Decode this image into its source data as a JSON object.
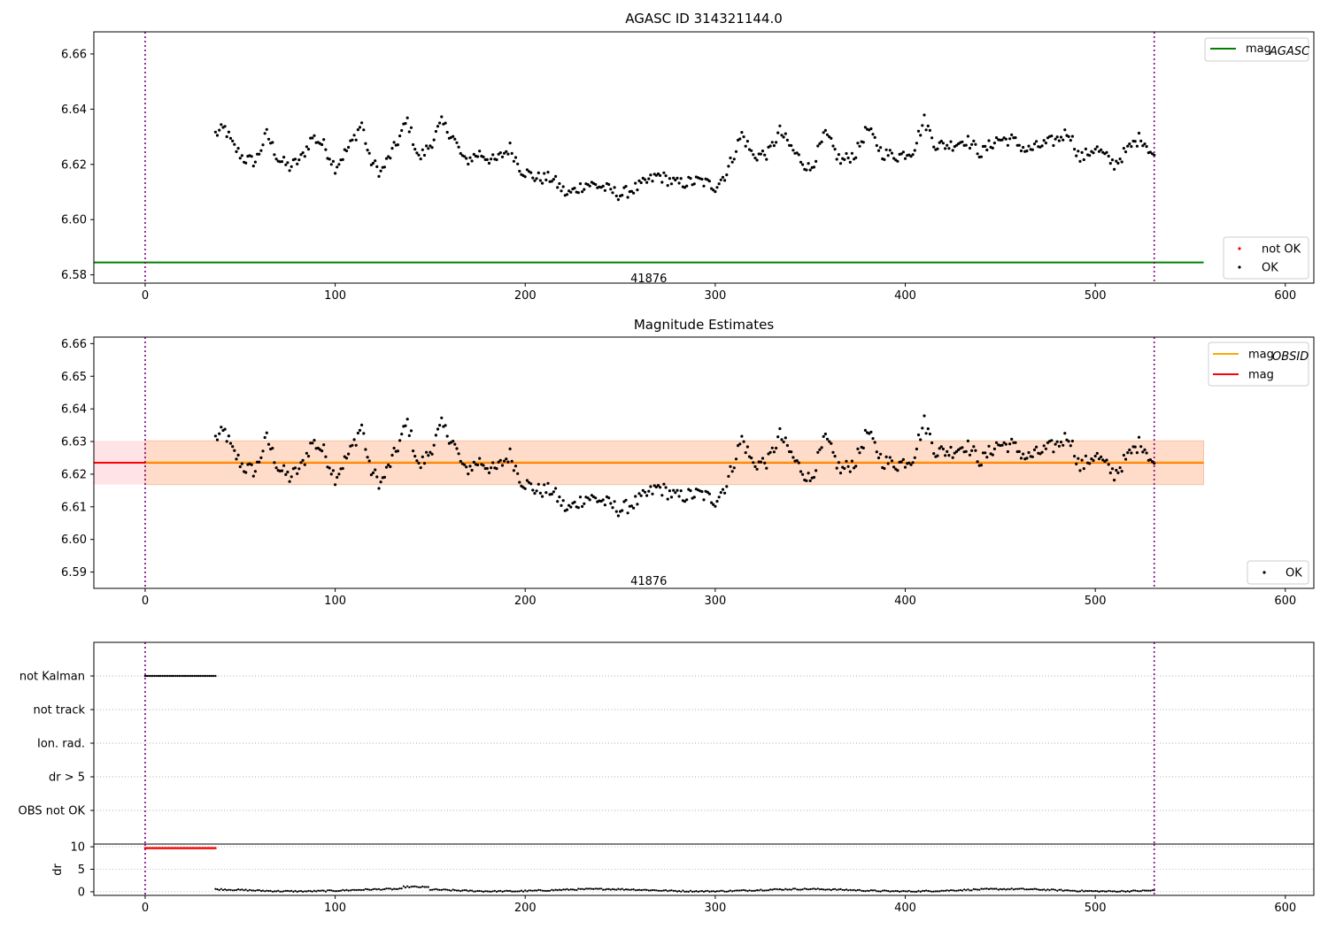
{
  "chart_data": [
    {
      "type": "scatter",
      "title": "AGASC ID 314321144.0",
      "xlim": [
        -27,
        615
      ],
      "ylim": [
        6.577,
        6.668
      ],
      "xticks": [
        0,
        100,
        200,
        300,
        400,
        500,
        600
      ],
      "yticks": [
        6.58,
        6.6,
        6.62,
        6.64,
        6.66
      ],
      "vlines": [
        0,
        531
      ],
      "hlines": [
        {
          "name": "mag_AGASC",
          "y": 6.5845,
          "x": [
            -27,
            557
          ],
          "color": "#008000"
        }
      ],
      "annotation": {
        "text": "41876",
        "x": 265,
        "y": 6.579
      },
      "legend_upper": {
        "position": "upper right",
        "entries": [
          {
            "label": "mag",
            "subscript": "AGASC",
            "color": "#008000"
          }
        ]
      },
      "legend_lower": {
        "position": "lower right",
        "entries": [
          {
            "label": "not OK",
            "color": "#ff0000"
          },
          {
            "label": "OK",
            "color": "#000000"
          }
        ]
      },
      "series": [
        {
          "name": "OK",
          "color": "#000000",
          "source": "mag_series"
        }
      ]
    },
    {
      "type": "scatter",
      "title": "Magnitude Estimates",
      "xlim": [
        -27,
        615
      ],
      "ylim": [
        6.585,
        6.662
      ],
      "xticks": [
        0,
        100,
        200,
        300,
        400,
        500,
        600
      ],
      "yticks": [
        6.59,
        6.6,
        6.61,
        6.62,
        6.63,
        6.64,
        6.65,
        6.66
      ],
      "vlines": [
        0,
        531
      ],
      "bands": [
        {
          "x": [
            -27,
            557
          ],
          "y": [
            6.6168,
            6.6302
          ],
          "color": "#ffe3e6"
        },
        {
          "x": [
            0,
            557
          ],
          "y": [
            6.6168,
            6.6302
          ],
          "color": "#ffdcca"
        }
      ],
      "hlines": [
        {
          "name": "mag",
          "y": 6.6235,
          "x": [
            -27,
            557
          ],
          "color": "#ff0000"
        },
        {
          "name": "mag_OBSID",
          "y": 6.6236,
          "x": [
            0,
            557
          ],
          "color": "#ffa500"
        }
      ],
      "annotation": {
        "text": "41876",
        "x": 265,
        "y": 6.5875
      },
      "legend_upper": {
        "position": "upper right",
        "entries": [
          {
            "label": "mag",
            "subscript": "OBSID",
            "color": "#ffa500"
          },
          {
            "label": "mag",
            "color": "#ff0000"
          }
        ]
      },
      "legend_lower": {
        "position": "lower right",
        "entries": [
          {
            "label": "OK",
            "color": "#000000"
          }
        ]
      },
      "series": [
        {
          "name": "OK",
          "color": "#000000",
          "source": "mag_series"
        }
      ]
    },
    {
      "type": "scatter",
      "xlim": [
        -27,
        615
      ],
      "categories": [
        "not Kalman",
        "not track",
        "Ion. rad.",
        "dr > 5",
        "OBS not OK"
      ],
      "flag_segments": [
        {
          "category": "not Kalman",
          "x": [
            0,
            37
          ],
          "color": "#000000"
        }
      ],
      "vlines": [
        0,
        531
      ],
      "series": []
    },
    {
      "type": "scatter",
      "ylabel": "dr",
      "xlim": [
        -27,
        615
      ],
      "ylim": [
        -0.8,
        10.6
      ],
      "xticks": [
        0,
        100,
        200,
        300,
        400,
        500,
        600
      ],
      "yticks": [
        0,
        5,
        10
      ],
      "vlines": [
        0,
        531
      ],
      "series": [
        {
          "name": "dr > 5",
          "color": "#ff0000",
          "x_range": [
            0,
            37
          ],
          "y": 9.7
        },
        {
          "name": "dr",
          "color": "#000000",
          "x_range": [
            37,
            531
          ],
          "y_range": [
            0,
            1.2
          ]
        }
      ]
    }
  ],
  "mag_series": {
    "x_range": [
      37,
      531
    ],
    "knots": [
      [
        37,
        6.631
      ],
      [
        42,
        6.633
      ],
      [
        46,
        6.627
      ],
      [
        52,
        6.622
      ],
      [
        58,
        6.621
      ],
      [
        64,
        6.631
      ],
      [
        70,
        6.622
      ],
      [
        76,
        6.619
      ],
      [
        82,
        6.622
      ],
      [
        88,
        6.63
      ],
      [
        94,
        6.627
      ],
      [
        100,
        6.619
      ],
      [
        108,
        6.627
      ],
      [
        114,
        6.635
      ],
      [
        118,
        6.622
      ],
      [
        124,
        6.617
      ],
      [
        132,
        6.627
      ],
      [
        138,
        6.636
      ],
      [
        144,
        6.622
      ],
      [
        150,
        6.627
      ],
      [
        156,
        6.635
      ],
      [
        162,
        6.63
      ],
      [
        168,
        6.621
      ],
      [
        176,
        6.624
      ],
      [
        184,
        6.621
      ],
      [
        192,
        6.626
      ],
      [
        198,
        6.618
      ],
      [
        206,
        6.615
      ],
      [
        214,
        6.615
      ],
      [
        222,
        6.609
      ],
      [
        232,
        6.613
      ],
      [
        240,
        6.612
      ],
      [
        250,
        6.609
      ],
      [
        260,
        6.612
      ],
      [
        270,
        6.616
      ],
      [
        280,
        6.613
      ],
      [
        292,
        6.614
      ],
      [
        300,
        6.612
      ],
      [
        306,
        6.617
      ],
      [
        314,
        6.631
      ],
      [
        320,
        6.623
      ],
      [
        328,
        6.624
      ],
      [
        334,
        6.632
      ],
      [
        342,
        6.624
      ],
      [
        350,
        6.618
      ],
      [
        358,
        6.631
      ],
      [
        366,
        6.621
      ],
      [
        374,
        6.624
      ],
      [
        380,
        6.633
      ],
      [
        388,
        6.624
      ],
      [
        396,
        6.623
      ],
      [
        404,
        6.625
      ],
      [
        410,
        6.636
      ],
      [
        416,
        6.627
      ],
      [
        424,
        6.627
      ],
      [
        432,
        6.629
      ],
      [
        440,
        6.624
      ],
      [
        448,
        6.629
      ],
      [
        456,
        6.629
      ],
      [
        464,
        6.625
      ],
      [
        472,
        6.627
      ],
      [
        480,
        6.629
      ],
      [
        486,
        6.632
      ],
      [
        492,
        6.622
      ],
      [
        500,
        6.626
      ],
      [
        510,
        6.62
      ],
      [
        518,
        6.626
      ],
      [
        524,
        6.63
      ],
      [
        531,
        6.623
      ]
    ]
  }
}
